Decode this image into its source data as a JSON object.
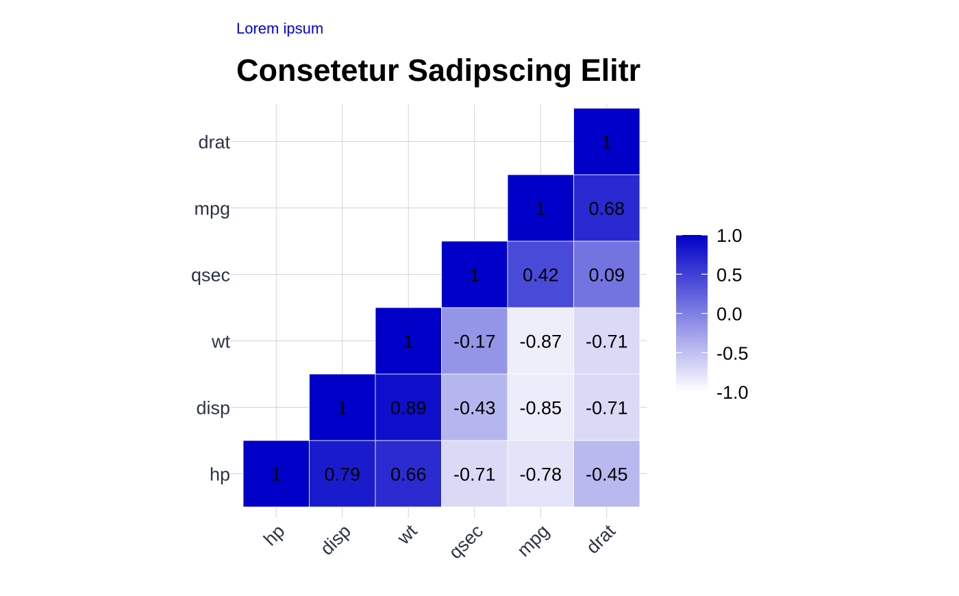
{
  "chart_data": {
    "type": "heatmap",
    "subtitle": "Lorem ipsum",
    "title": "Consetetur Sadipscing Elitr",
    "x_categories": [
      "hp",
      "disp",
      "wt",
      "qsec",
      "mpg",
      "drat"
    ],
    "y_categories": [
      "hp",
      "disp",
      "wt",
      "qsec",
      "mpg",
      "drat"
    ],
    "cells": [
      {
        "x": "hp",
        "y": "hp",
        "value": 1,
        "label": "1"
      },
      {
        "x": "disp",
        "y": "hp",
        "value": 0.79,
        "label": "0.79"
      },
      {
        "x": "wt",
        "y": "hp",
        "value": 0.66,
        "label": "0.66"
      },
      {
        "x": "qsec",
        "y": "hp",
        "value": -0.71,
        "label": "-0.71"
      },
      {
        "x": "mpg",
        "y": "hp",
        "value": -0.78,
        "label": "-0.78"
      },
      {
        "x": "drat",
        "y": "hp",
        "value": -0.45,
        "label": "-0.45"
      },
      {
        "x": "disp",
        "y": "disp",
        "value": 1,
        "label": "1"
      },
      {
        "x": "wt",
        "y": "disp",
        "value": 0.89,
        "label": "0.89"
      },
      {
        "x": "qsec",
        "y": "disp",
        "value": -0.43,
        "label": "-0.43"
      },
      {
        "x": "mpg",
        "y": "disp",
        "value": -0.85,
        "label": "-0.85"
      },
      {
        "x": "drat",
        "y": "disp",
        "value": -0.71,
        "label": "-0.71"
      },
      {
        "x": "wt",
        "y": "wt",
        "value": 1,
        "label": "1"
      },
      {
        "x": "qsec",
        "y": "wt",
        "value": -0.17,
        "label": "-0.17"
      },
      {
        "x": "mpg",
        "y": "wt",
        "value": -0.87,
        "label": "-0.87"
      },
      {
        "x": "drat",
        "y": "wt",
        "value": -0.71,
        "label": "-0.71"
      },
      {
        "x": "qsec",
        "y": "qsec",
        "value": 1,
        "label": "1"
      },
      {
        "x": "mpg",
        "y": "qsec",
        "value": 0.42,
        "label": "0.42"
      },
      {
        "x": "drat",
        "y": "qsec",
        "value": 0.09,
        "label": "0.09"
      },
      {
        "x": "mpg",
        "y": "mpg",
        "value": 1,
        "label": "1"
      },
      {
        "x": "drat",
        "y": "mpg",
        "value": 0.68,
        "label": "0.68"
      },
      {
        "x": "drat",
        "y": "drat",
        "value": 1,
        "label": "1"
      }
    ],
    "color_scale": {
      "low_color": "#ffffff",
      "high_color": "#0000c8",
      "range": [
        -1,
        1
      ]
    },
    "legend": {
      "position": "right",
      "ticks": [
        1.0,
        0.5,
        0.0,
        -0.5,
        -1.0
      ],
      "tick_labels": [
        "1.0",
        "0.5",
        "0.0",
        "-0.5",
        "-1.0"
      ]
    },
    "grid": true,
    "colors": {
      "subtitle": "#0000e0",
      "title": "#000000",
      "axis_text": "#2b3444",
      "cell_text": "#000000",
      "grid": "#cfd3dc",
      "tile_border": "#ffffff"
    }
  }
}
